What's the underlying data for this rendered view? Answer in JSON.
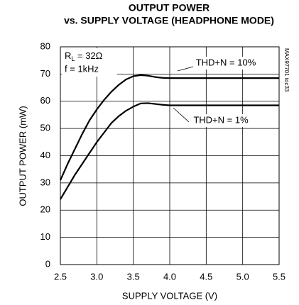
{
  "chart_data": {
    "type": "line",
    "title": [
      "OUTPUT POWER",
      "vs. SUPPLY VOLTAGE (HEADPHONE MODE)"
    ],
    "x_label": "SUPPLY VOLTAGE (V)",
    "y_label": "OUTPUT POWER (mW)",
    "x": [
      2.5,
      2.6,
      2.7,
      2.8,
      2.9,
      3.0,
      3.1,
      3.2,
      3.3,
      3.4,
      3.5,
      3.6,
      3.7,
      3.8,
      3.9,
      4.0,
      4.5,
      5.0,
      5.5
    ],
    "series": [
      {
        "name": "THD+N = 10%",
        "color": "#000000",
        "values": [
          31,
          37,
          42.5,
          48,
          53,
          57,
          60.5,
          63.5,
          66,
          68,
          69.2,
          69.6,
          69.4,
          68.9,
          68.6,
          68.5,
          68.5,
          68.5,
          68.5
        ]
      },
      {
        "name": "THD+N = 1%",
        "color": "#000000",
        "values": [
          24,
          28.5,
          33,
          37,
          41,
          45,
          48.5,
          52,
          54.5,
          56.5,
          58,
          59.2,
          59.3,
          59,
          58.7,
          58.5,
          58.5,
          58.5,
          58.5
        ]
      }
    ],
    "conditions": [
      "R",
      "L",
      " = 32Ω",
      "f = 1kHz"
    ],
    "figure_id": "MAX97701 toc33",
    "xlim": [
      2.5,
      5.5
    ],
    "xticks": [
      2.5,
      {
        "value": 3,
        "label": "3.0"
      },
      3.5,
      {
        "value": 4,
        "label": "4.0"
      },
      4.5,
      {
        "value": 5,
        "label": "5.0"
      },
      5.5
    ],
    "ylim": [
      0,
      80
    ],
    "yticks": [
      0,
      10,
      20,
      30,
      40,
      50,
      60,
      70,
      80
    ],
    "grid": true
  }
}
